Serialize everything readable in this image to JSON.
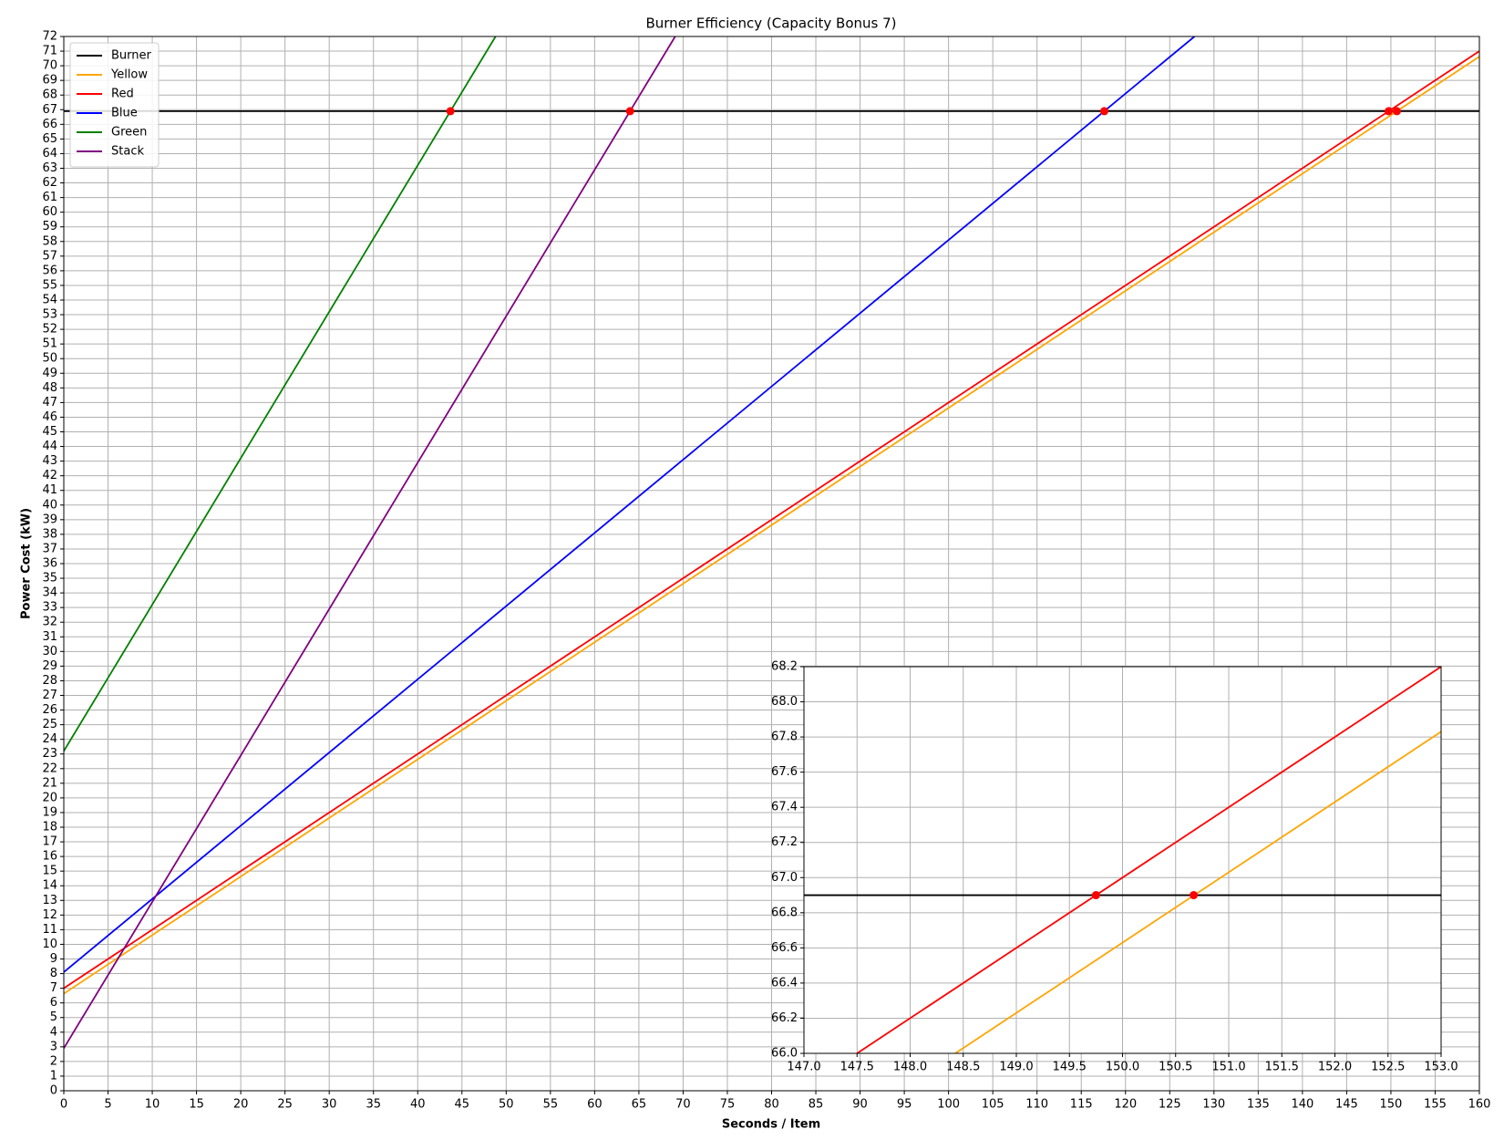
{
  "chart_data": [
    {
      "type": "line",
      "title": "Burner Efficiency (Capacity Bonus 7)",
      "xlabel": "Seconds / Item",
      "ylabel": "Power Cost (kW)",
      "xlim": [
        0,
        160
      ],
      "ylim": [
        0,
        72
      ],
      "xticks": [
        0,
        5,
        10,
        15,
        20,
        25,
        30,
        35,
        40,
        45,
        50,
        55,
        60,
        65,
        70,
        75,
        80,
        85,
        90,
        95,
        100,
        105,
        110,
        115,
        120,
        125,
        130,
        135,
        140,
        145,
        150,
        155,
        160
      ],
      "yticks": [
        0,
        1,
        2,
        3,
        4,
        5,
        6,
        7,
        8,
        9,
        10,
        11,
        12,
        13,
        14,
        15,
        16,
        17,
        18,
        19,
        20,
        21,
        22,
        23,
        24,
        25,
        26,
        27,
        28,
        29,
        30,
        31,
        32,
        33,
        34,
        35,
        36,
        37,
        38,
        39,
        40,
        41,
        42,
        43,
        44,
        45,
        46,
        47,
        48,
        49,
        50,
        51,
        52,
        53,
        54,
        55,
        56,
        57,
        58,
        59,
        60,
        61,
        62,
        63,
        64,
        65,
        66,
        67,
        68,
        69,
        70,
        71,
        72
      ],
      "grid": true,
      "legend": "upper left",
      "series": [
        {
          "name": "Burner",
          "color": "#000000",
          "x": [
            0,
            160
          ],
          "values": [
            66.9,
            66.9
          ]
        },
        {
          "name": "Yellow",
          "color": "#ffa500",
          "x": [
            0,
            160
          ],
          "values": [
            6.63,
            70.63
          ]
        },
        {
          "name": "Red",
          "color": "#ff0000",
          "x": [
            0,
            160
          ],
          "values": [
            7.0,
            71.0
          ]
        },
        {
          "name": "Blue",
          "color": "#0000ff",
          "x": [
            0,
            127.8
          ],
          "values": [
            8.1,
            72
          ]
        },
        {
          "name": "Green",
          "color": "#008000",
          "x": [
            0,
            48.8
          ],
          "values": [
            23.2,
            72
          ]
        },
        {
          "name": "Stack",
          "color": "#800080",
          "x": [
            0,
            69.1
          ],
          "values": [
            2.9,
            72
          ]
        }
      ],
      "points": {
        "color": "#ff0000",
        "x": [
          43.7,
          64,
          117.6,
          149.75,
          150.67
        ],
        "values": [
          66.9,
          66.9,
          66.9,
          66.9,
          66.9
        ]
      }
    },
    {
      "type": "line",
      "xlim": [
        147,
        153
      ],
      "ylim": [
        66,
        68.2
      ],
      "xticks": [
        {
          "value": 147,
          "label": "147.0"
        },
        {
          "value": 147.5,
          "label": "147.5"
        },
        {
          "value": 148,
          "label": "148.0"
        },
        {
          "value": 148.5,
          "label": "148.5"
        },
        {
          "value": 149,
          "label": "149.0"
        },
        {
          "value": 149.5,
          "label": "149.5"
        },
        {
          "value": 150,
          "label": "150.0"
        },
        {
          "value": 150.5,
          "label": "150.5"
        },
        {
          "value": 151,
          "label": "151.0"
        },
        {
          "value": 151.5,
          "label": "151.5"
        },
        {
          "value": 152,
          "label": "152.0"
        },
        {
          "value": 152.5,
          "label": "152.5"
        },
        {
          "value": 153,
          "label": "153.0"
        }
      ],
      "yticks": [
        {
          "value": 66,
          "label": "66.0"
        },
        {
          "value": 66.2,
          "label": "66.2"
        },
        {
          "value": 66.4,
          "label": "66.4"
        },
        {
          "value": 66.6,
          "label": "66.6"
        },
        {
          "value": 66.8,
          "label": "66.8"
        },
        {
          "value": 67,
          "label": "67.0"
        },
        {
          "value": 67.2,
          "label": "67.2"
        },
        {
          "value": 67.4,
          "label": "67.4"
        },
        {
          "value": 67.6,
          "label": "67.6"
        },
        {
          "value": 67.8,
          "label": "67.8"
        },
        {
          "value": 68,
          "label": "68.0"
        },
        {
          "value": 68.2,
          "label": "68.2"
        }
      ],
      "grid": true,
      "series": [
        {
          "color": "#000000",
          "x": [
            147,
            153
          ],
          "values": [
            66.9,
            66.9
          ]
        },
        {
          "color": "#ff0000",
          "x": [
            147.5,
            153
          ],
          "values": [
            66.0,
            68.2
          ]
        },
        {
          "color": "#ffa500",
          "x": [
            148.425,
            153
          ],
          "values": [
            66.0,
            67.83
          ]
        }
      ],
      "points": {
        "color": "#ff0000",
        "x": [
          149.75,
          150.67
        ],
        "values": [
          66.9,
          66.9
        ]
      }
    }
  ]
}
